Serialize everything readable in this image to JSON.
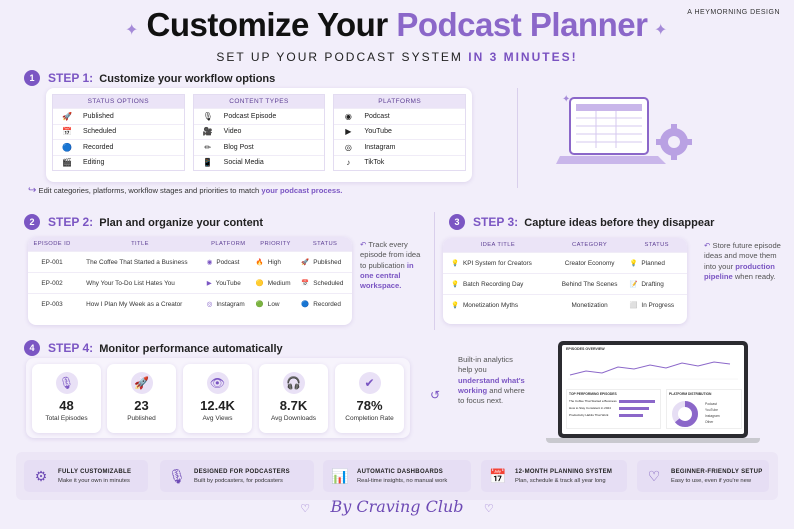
{
  "header": {
    "title_part1": "Customize Your",
    "title_part2": "Podcast Planner",
    "brand": "A HEYMORNING DESIGN",
    "subtitle_part1": "SET UP YOUR PODCAST SYSTEM",
    "subtitle_part2": "IN 3 MINUTES!"
  },
  "step1": {
    "num": "1",
    "label": "STEP 1:",
    "title": "Customize your workflow options",
    "columns": [
      {
        "header": "STATUS OPTIONS",
        "items": [
          {
            "icon": "rocket-icon",
            "glyph": "🚀",
            "label": "Published"
          },
          {
            "icon": "calendar-icon",
            "glyph": "📅",
            "label": "Scheduled"
          },
          {
            "icon": "record-icon",
            "glyph": "🔵",
            "label": "Recorded"
          },
          {
            "icon": "clapper-icon",
            "glyph": "🎬",
            "label": "Editing"
          }
        ]
      },
      {
        "header": "CONTENT TYPES",
        "items": [
          {
            "icon": "microphone-icon",
            "glyph": "🎙",
            "label": "Podcast Episode"
          },
          {
            "icon": "video-icon",
            "glyph": "🎥",
            "label": "Video"
          },
          {
            "icon": "pencil-icon",
            "glyph": "✏",
            "label": "Blog Post"
          },
          {
            "icon": "phone-icon",
            "glyph": "📱",
            "label": "Social Media"
          }
        ]
      },
      {
        "header": "PLATFORMS",
        "items": [
          {
            "icon": "podcast-icon",
            "glyph": "◉",
            "label": "Podcast"
          },
          {
            "icon": "youtube-icon",
            "glyph": "▶",
            "label": "YouTube"
          },
          {
            "icon": "instagram-icon",
            "glyph": "◎",
            "label": "Instagram"
          },
          {
            "icon": "tiktok-icon",
            "glyph": "♪",
            "label": "TikTok"
          }
        ]
      }
    ],
    "note_part1": "Edit categories, platforms, workflow stages and priorities to match",
    "note_part2": "your podcast process."
  },
  "step2": {
    "num": "2",
    "label": "STEP 2:",
    "title": "Plan and organize your content",
    "headers": [
      "EPISODE ID",
      "TITLE",
      "PLATFORM",
      "PRIORITY",
      "STATUS"
    ],
    "rows": [
      {
        "id": "EP-001",
        "title": "The Coffee That Started a Business",
        "platform": "Podcast",
        "platform_glyph": "◉",
        "priority": "High",
        "priority_glyph": "🔥",
        "status": "Published",
        "status_glyph": "🚀"
      },
      {
        "id": "EP-002",
        "title": "Why Your To-Do List Hates You",
        "platform": "YouTube",
        "platform_glyph": "▶",
        "priority": "Medium",
        "priority_glyph": "🟡",
        "status": "Scheduled",
        "status_glyph": "📅"
      },
      {
        "id": "EP-003",
        "title": "How I Plan My Week as a Creator",
        "platform": "Instagram",
        "platform_glyph": "◎",
        "priority": "Low",
        "priority_glyph": "🟢",
        "status": "Recorded",
        "status_glyph": "🔵"
      }
    ],
    "note_part1": "Track every episode from idea to publication",
    "note_part2": "in one central workspace."
  },
  "step3": {
    "num": "3",
    "label": "STEP 3:",
    "title": "Capture ideas before they disappear",
    "headers": [
      "IDEA TITLE",
      "CATEGORY",
      "STATUS"
    ],
    "rows": [
      {
        "title": "KPI System for Creators",
        "category": "Creator Economy",
        "status": "Planned",
        "status_glyph": "💡"
      },
      {
        "title": "Batch Recording Day",
        "category": "Behind The Scenes",
        "status": "Drafting",
        "status_glyph": "📝"
      },
      {
        "title": "Monetization Myths",
        "category": "Monetization",
        "status": "In Progress",
        "status_glyph": "⬜"
      }
    ],
    "note_part1": "Store future episode ideas and move them into your",
    "note_part2": "production pipeline",
    "note_part3": "when ready."
  },
  "step4": {
    "num": "4",
    "label": "STEP 4:",
    "title": "Monitor performance automatically",
    "kpis": [
      {
        "icon": "microphone-icon",
        "glyph": "🎙",
        "value": "48",
        "label": "Total Episodes"
      },
      {
        "icon": "rocket-icon",
        "glyph": "🚀",
        "value": "23",
        "label": "Published"
      },
      {
        "icon": "eye-icon",
        "glyph": "👁",
        "value": "12.4K",
        "label": "Avg Views"
      },
      {
        "icon": "headphones-icon",
        "glyph": "🎧",
        "value": "8.7K",
        "label": "Avg Downloads"
      },
      {
        "icon": "check-circle-icon",
        "glyph": "✔",
        "value": "78%",
        "label": "Completion Rate"
      }
    ],
    "note_part1": "Built-in analytics help you",
    "note_part2": "understand what's working",
    "note_part3": "and where to focus next."
  },
  "dashboard": {
    "title": "EPISODES OVERVIEW",
    "top_title": "TOP PERFORMING EPISODES",
    "top_items": [
      "The Coffee That Started a Business",
      "How to Stay Consistent in 2024",
      "Productivity Habits That Work"
    ],
    "dist_title": "PLATFORM DISTRIBUTION",
    "dist_items": [
      "Podcast",
      "YouTube",
      "Instagram",
      "Other"
    ]
  },
  "features": [
    {
      "icon": "sliders-icon",
      "glyph": "⚙",
      "title": "FULLY CUSTOMIZABLE",
      "sub": "Make it your own in minutes"
    },
    {
      "icon": "microphone-icon",
      "glyph": "🎙",
      "title": "DESIGNED FOR PODCASTERS",
      "sub": "Built by podcasters, for podcasters"
    },
    {
      "icon": "bar-chart-icon",
      "glyph": "📊",
      "title": "AUTOMATIC DASHBOARDS",
      "sub": "Real-time insights, no manual work"
    },
    {
      "icon": "calendar-icon",
      "glyph": "📅",
      "title": "12-MONTH PLANNING SYSTEM",
      "sub": "Plan, schedule & track all year long"
    },
    {
      "icon": "heart-icon",
      "glyph": "♡",
      "title": "BEGINNER-FRIENDLY SETUP",
      "sub": "Easy to use, even if you're new"
    }
  ],
  "signature": "By Craving Club",
  "colors": {
    "accent": "#7b56c3",
    "background": "#f2eefa",
    "header_bg": "#ebe4f7"
  }
}
